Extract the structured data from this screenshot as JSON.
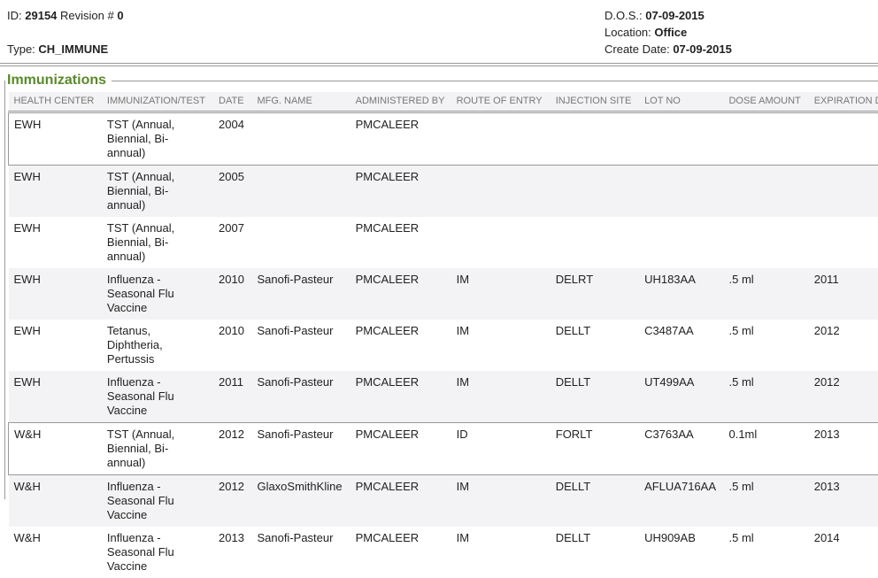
{
  "header": {
    "id_label": "ID:",
    "id": "29154",
    "revision_label": "Revision #",
    "revision": "0",
    "type_label": "Type:",
    "type": "CH_IMMUNE",
    "dos_label": "D.O.S.:",
    "dos": "07-09-2015",
    "location_label": "Location:",
    "location": "Office",
    "create_label": "Create Date:",
    "create_date": "07-09-2015"
  },
  "section": {
    "title": "Immunizations"
  },
  "columns": [
    "HEALTH CENTER",
    "IMMUNIZATION/TEST",
    "DATE",
    "MFG. NAME",
    "ADMINISTERED BY",
    "ROUTE OF ENTRY",
    "INJECTION SITE",
    "LOT NO",
    "DOSE AMOUNT",
    "EXPIRATION DATE"
  ],
  "rows": [
    [
      "EWH",
      "TST (Annual, Biennial, Bi-annual)",
      "2004",
      "",
      "PMCALEER",
      "",
      "",
      "",
      "",
      ""
    ],
    [
      "EWH",
      "TST (Annual, Biennial, Bi-annual)",
      "2005",
      "",
      "PMCALEER",
      "",
      "",
      "",
      "",
      ""
    ],
    [
      "EWH",
      "TST (Annual, Biennial, Bi-annual)",
      "2007",
      "",
      "PMCALEER",
      "",
      "",
      "",
      "",
      ""
    ],
    [
      "EWH",
      "Influenza - Seasonal Flu Vaccine",
      "2010",
      "Sanofi-Pasteur",
      "PMCALEER",
      "IM",
      "DELRT",
      "UH183AA",
      ".5 ml",
      "2011"
    ],
    [
      "EWH",
      "Tetanus, Diphtheria, Pertussis",
      "2010",
      "Sanofi-Pasteur",
      "PMCALEER",
      "IM",
      "DELLT",
      "C3487AA",
      ".5 ml",
      "2012"
    ],
    [
      "EWH",
      "Influenza - Seasonal Flu Vaccine",
      "2011",
      "Sanofi-Pasteur",
      "PMCALEER",
      "IM",
      "DELLT",
      "UT499AA",
      ".5 ml",
      "2012"
    ],
    [
      "W&H",
      "TST (Annual, Biennial, Bi-annual)",
      "2012",
      "Sanofi-Pasteur",
      "PMCALEER",
      "ID",
      "FORLT",
      "C3763AA",
      "0.1ml",
      "2013"
    ],
    [
      "W&H",
      "Influenza - Seasonal Flu Vaccine",
      "2012",
      "GlaxoSmithKline",
      "PMCALEER",
      "IM",
      "DELLT",
      "AFLUA716AA",
      ".5 ml",
      "2013"
    ],
    [
      "W&H",
      "Influenza - Seasonal Flu Vaccine",
      "2013",
      "Sanofi-Pasteur",
      "PMCALEER",
      "IM",
      "DELLT",
      "UH909AB",
      ".5 ml",
      "2014"
    ]
  ]
}
